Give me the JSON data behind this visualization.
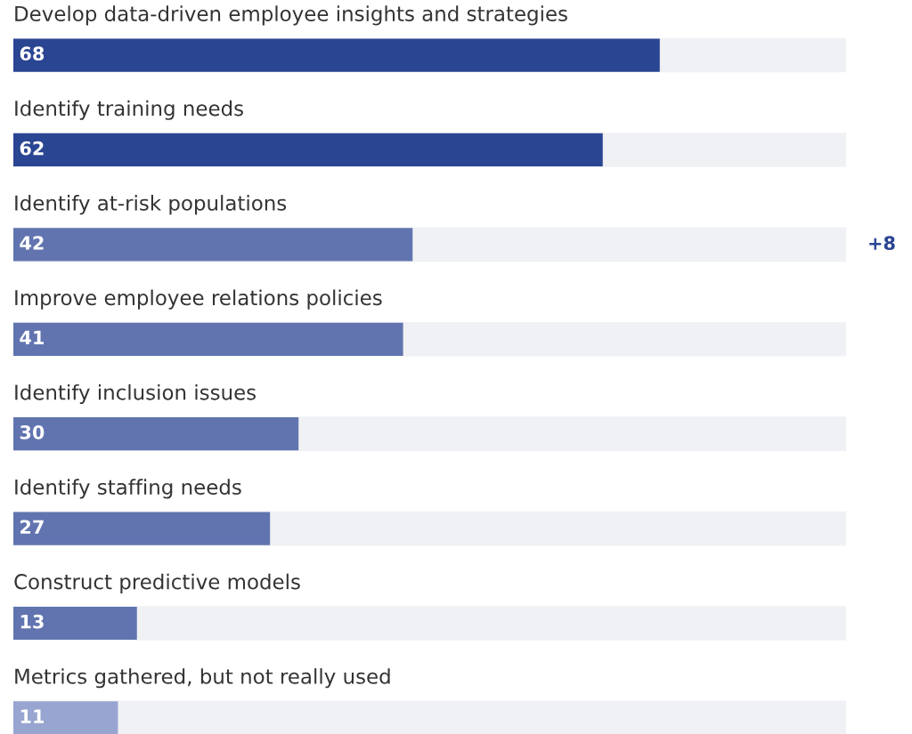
{
  "chart_data": {
    "type": "bar",
    "orientation": "horizontal",
    "categories": [
      "Develop data-driven employee insights and strategies",
      "Identify training needs",
      "Identify at-risk populations",
      "Improve employee relations policies",
      "Identify inclusion issues",
      "Identify staffing needs",
      "Construct predictive models",
      "Metrics gathered, but not really used"
    ],
    "values": [
      68,
      62,
      42,
      41,
      30,
      27,
      13,
      11
    ],
    "colors": [
      "#2a4592",
      "#2a4592",
      "#6174b0",
      "#6174b0",
      "#6174b0",
      "#6174b0",
      "#6174b0",
      "#97a5d0"
    ],
    "xlim": [
      0,
      87.6
    ],
    "data_labels": true,
    "annotations": [
      "+8"
    ]
  }
}
